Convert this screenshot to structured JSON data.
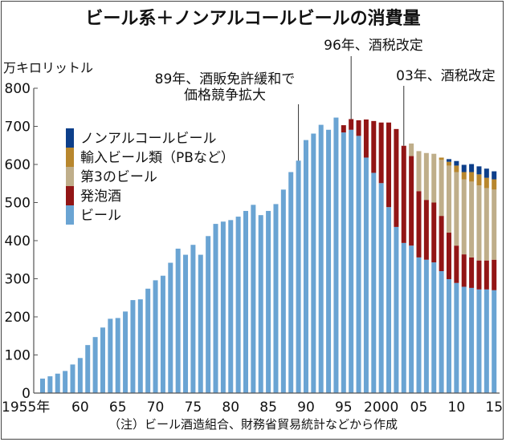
{
  "chart_data": {
    "type": "bar",
    "stacked": true,
    "title": "ビール系＋ノンアルコールビールの消費量",
    "ylabel": "万キロリットル",
    "xlabel": "",
    "ylim": [
      0,
      800
    ],
    "yticks": [
      0,
      100,
      200,
      300,
      400,
      500,
      600,
      700,
      800
    ],
    "xtick_labels": [
      {
        "year": 1955,
        "label": "1955年"
      },
      {
        "year": 1960,
        "label": "60"
      },
      {
        "year": 1965,
        "label": "65"
      },
      {
        "year": 1970,
        "label": "70"
      },
      {
        "year": 1975,
        "label": "75"
      },
      {
        "year": 1980,
        "label": "80"
      },
      {
        "year": 1985,
        "label": "85"
      },
      {
        "year": 1990,
        "label": "90"
      },
      {
        "year": 1995,
        "label": "95"
      },
      {
        "year": 2000,
        "label": "2000"
      },
      {
        "year": 2005,
        "label": "05"
      },
      {
        "year": 2010,
        "label": "10"
      },
      {
        "year": 2015,
        "label": "15"
      }
    ],
    "legend_position": "top-left",
    "legend": [
      {
        "key": "nonalc",
        "label": "ノンアルコールビール",
        "color": "#0d3f8a"
      },
      {
        "key": "imported",
        "label": "輸入ビール類（PBなど）",
        "color": "#b8872e"
      },
      {
        "key": "third",
        "label": "第3のビール",
        "color": "#bfae8a"
      },
      {
        "key": "happoshu",
        "label": "発泡酒",
        "color": "#921515"
      },
      {
        "key": "beer",
        "label": "ビール",
        "color": "#6aa4d3"
      }
    ],
    "x": [
      1955,
      1956,
      1957,
      1958,
      1959,
      1960,
      1961,
      1962,
      1963,
      1964,
      1965,
      1966,
      1967,
      1968,
      1969,
      1970,
      1971,
      1972,
      1973,
      1974,
      1975,
      1976,
      1977,
      1978,
      1979,
      1980,
      1981,
      1982,
      1983,
      1984,
      1985,
      1986,
      1987,
      1988,
      1989,
      1990,
      1991,
      1992,
      1993,
      1994,
      1995,
      1996,
      1997,
      1998,
      1999,
      2000,
      2001,
      2002,
      2003,
      2004,
      2005,
      2006,
      2007,
      2008,
      2009,
      2010,
      2011,
      2012,
      2013,
      2014,
      2015
    ],
    "series": [
      {
        "name": "ビール",
        "key": "beer",
        "values": [
          38,
          44,
          51,
          58,
          75,
          92,
          126,
          147,
          172,
          195,
          197,
          214,
          244,
          246,
          274,
          296,
          308,
          342,
          379,
          363,
          389,
          363,
          412,
          444,
          450,
          454,
          463,
          478,
          494,
          467,
          478,
          496,
          534,
          580,
          610,
          664,
          681,
          704,
          691,
          723,
          684,
          691,
          675,
          618,
          578,
          551,
          488,
          436,
          394,
          387,
          356,
          350,
          343,
          320,
          299,
          289,
          279,
          276,
          272,
          272,
          270
        ]
      },
      {
        "name": "発泡酒",
        "key": "happoshu",
        "values": [
          0,
          0,
          0,
          0,
          0,
          0,
          0,
          0,
          0,
          0,
          0,
          0,
          0,
          0,
          0,
          0,
          0,
          0,
          0,
          0,
          0,
          0,
          0,
          0,
          0,
          0,
          0,
          0,
          0,
          0,
          0,
          0,
          0,
          0,
          0,
          0,
          0,
          0,
          0,
          0,
          19,
          28,
          41,
          100,
          136,
          159,
          222,
          257,
          255,
          235,
          174,
          157,
          157,
          145,
          122,
          98,
          85,
          80,
          76,
          76,
          80
        ]
      },
      {
        "name": "第3のビール",
        "key": "third",
        "values": [
          0,
          0,
          0,
          0,
          0,
          0,
          0,
          0,
          0,
          0,
          0,
          0,
          0,
          0,
          0,
          0,
          0,
          0,
          0,
          0,
          0,
          0,
          0,
          0,
          0,
          0,
          0,
          0,
          0,
          0,
          0,
          0,
          0,
          0,
          0,
          0,
          0,
          0,
          0,
          0,
          0,
          0,
          0,
          0,
          0,
          0,
          0,
          0,
          0,
          33,
          105,
          123,
          128,
          147,
          176,
          193,
          197,
          199,
          197,
          190,
          184
        ]
      },
      {
        "name": "輸入ビール類（PBなど）",
        "key": "imported",
        "values": [
          0,
          0,
          0,
          0,
          0,
          0,
          0,
          0,
          0,
          0,
          0,
          0,
          0,
          0,
          0,
          0,
          0,
          0,
          0,
          0,
          0,
          0,
          0,
          0,
          0,
          0,
          0,
          0,
          0,
          0,
          0,
          0,
          0,
          0,
          0,
          0,
          0,
          0,
          0,
          0,
          0,
          0,
          0,
          0,
          0,
          0,
          0,
          0,
          0,
          0,
          0,
          0,
          0,
          6,
          10,
          17,
          19,
          25,
          29,
          27,
          27
        ]
      },
      {
        "name": "ノンアルコールビール",
        "key": "nonalc",
        "values": [
          0,
          0,
          0,
          0,
          0,
          0,
          0,
          0,
          0,
          0,
          0,
          0,
          0,
          0,
          0,
          0,
          0,
          0,
          0,
          0,
          0,
          0,
          0,
          0,
          0,
          0,
          0,
          0,
          0,
          0,
          0,
          0,
          0,
          0,
          0,
          0,
          0,
          0,
          0,
          0,
          0,
          0,
          0,
          0,
          0,
          0,
          0,
          0,
          0,
          0,
          0,
          0,
          0,
          0,
          7,
          12,
          19,
          21,
          21,
          24,
          21
        ]
      }
    ],
    "annotations": [
      {
        "year": 1989,
        "lines": [
          "89年、酒販免許緩和で",
          "価格競争拡大"
        ]
      },
      {
        "year": 1996,
        "lines": [
          "96年、酒税改定"
        ]
      },
      {
        "year": 2003,
        "lines": [
          "03年、酒税改定"
        ]
      }
    ],
    "note": "（注）ビール酒造組合、財務省貿易統計などから作成"
  }
}
